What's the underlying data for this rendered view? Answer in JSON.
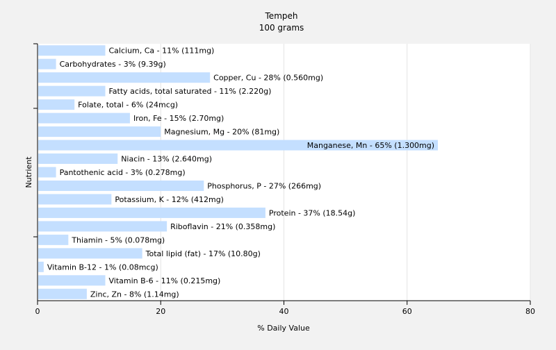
{
  "chart_data": {
    "type": "bar",
    "orientation": "horizontal",
    "title": "Tempeh",
    "subtitle": "100 grams",
    "xlabel": "% Daily Value",
    "ylabel": "Nutrient",
    "xlim": [
      0,
      80
    ],
    "xticks": [
      0,
      20,
      40,
      60,
      80
    ],
    "grid": true,
    "bar_color": "#c4dfff",
    "categories": [
      "Calcium, Ca - 11% (111mg)",
      "Carbohydrates - 3% (9.39g)",
      "Copper, Cu - 28% (0.560mg)",
      "Fatty acids, total saturated - 11% (2.220g)",
      "Folate, total - 6% (24mcg)",
      "Iron, Fe - 15% (2.70mg)",
      "Magnesium, Mg - 20% (81mg)",
      "Manganese, Mn - 65% (1.300mg)",
      "Niacin - 13% (2.640mg)",
      "Pantothenic acid - 3% (0.278mg)",
      "Phosphorus, P - 27% (266mg)",
      "Potassium, K - 12% (412mg)",
      "Protein - 37% (18.54g)",
      "Riboflavin - 21% (0.358mg)",
      "Thiamin - 5% (0.078mg)",
      "Total lipid (fat) - 17% (10.80g)",
      "Vitamin B-12 - 1% (0.08mcg)",
      "Vitamin B-6 - 11% (0.215mg)",
      "Zinc, Zn - 8% (1.14mg)"
    ],
    "values": [
      11,
      3,
      28,
      11,
      6,
      15,
      20,
      65,
      13,
      3,
      27,
      12,
      37,
      21,
      5,
      17,
      1,
      11,
      8
    ]
  }
}
